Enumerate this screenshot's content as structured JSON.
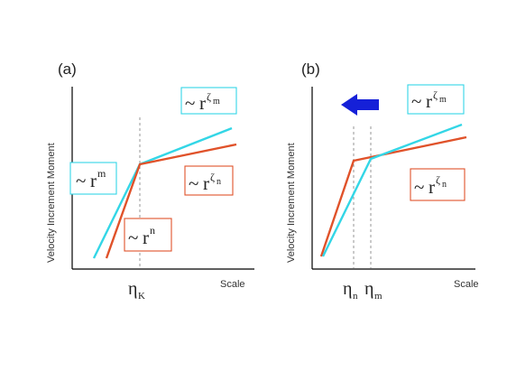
{
  "panel_a": {
    "label": "(a)",
    "ylabel": "Velocity Increment Moment",
    "xlabel": "Scale",
    "tilde": "~",
    "r": "r",
    "box_cyan_left": {
      "exponent": "m"
    },
    "box_cyan_top": {
      "exponent": "ζ",
      "exponent_sub": "m"
    },
    "box_red_right": {
      "exponent": "ζ",
      "exponent_sub": "n"
    },
    "box_red_bottom": {
      "exponent": "n"
    },
    "eta_main": "η",
    "eta_sub": "K"
  },
  "panel_b": {
    "label": "(b)",
    "ylabel": "Velocity Increment Moment",
    "xlabel": "Scale",
    "tilde": "~",
    "r": "r",
    "box_cyan_top": {
      "exponent": "ζ",
      "exponent_sub": "m"
    },
    "box_red_right": {
      "exponent": "ζ",
      "exponent_sub": "n"
    },
    "eta_n_main": "η",
    "eta_n_sub": "n",
    "eta_m_main": "η",
    "eta_m_sub": "m"
  },
  "colors": {
    "cyan": "#33d6e6",
    "red": "#e0522a",
    "arrow": "#1520d8",
    "axis": "#000000",
    "dashed": "#8a8a8a"
  }
}
